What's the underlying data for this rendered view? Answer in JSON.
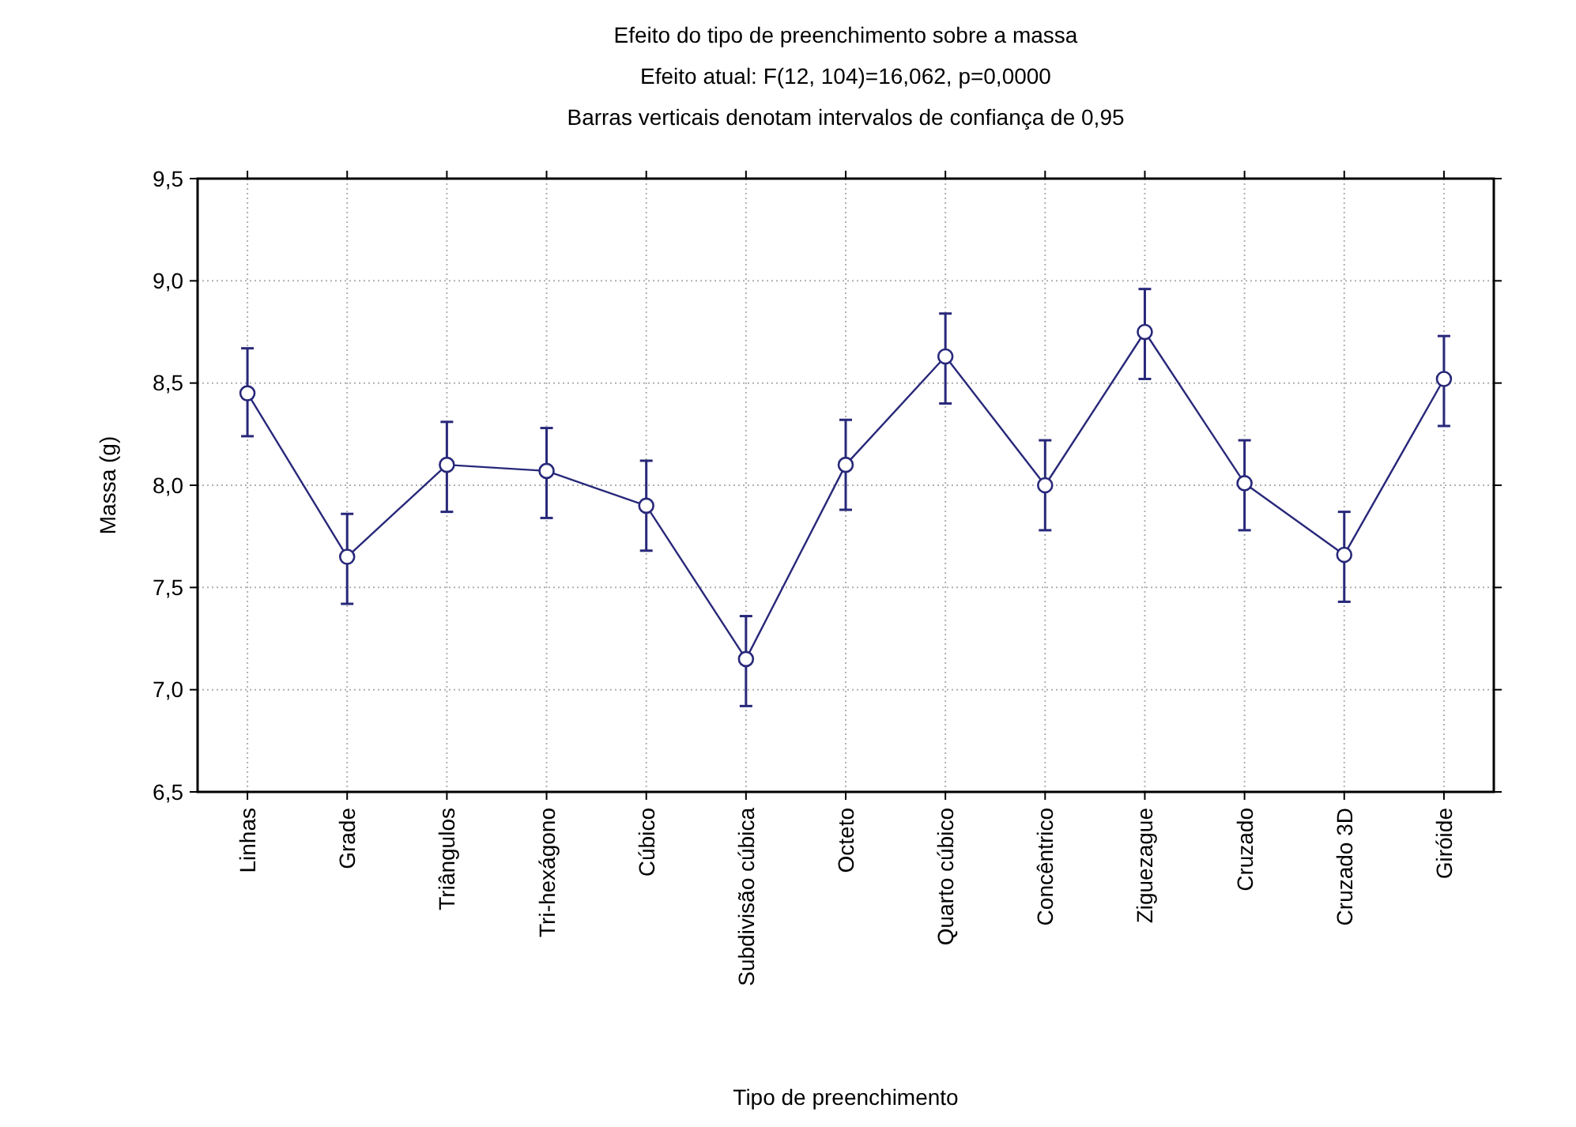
{
  "chart_data": {
    "type": "line",
    "title": "Efeito do tipo de preenchimento sobre a massa",
    "subtitle": "Efeito atual: F(12, 104)=16,062, p=0,0000",
    "annotations": [
      "Barras verticais denotam intervalos de confiança de 0,95"
    ],
    "xlabel": "Tipo de preenchimento",
    "ylabel": "Massa (g)",
    "categories": [
      "Linhas",
      "Grade",
      "Triângulos",
      "Tri-hexágono",
      "Cúbico",
      "Subdivisão cúbica",
      "Octeto",
      "Quarto cúbico",
      "Concêntrico",
      "Ziguezague",
      "Cruzado",
      "Cruzado 3D",
      "Giróide"
    ],
    "series": [
      {
        "color": "#28287a",
        "values": [
          8.45,
          7.65,
          8.1,
          8.07,
          7.9,
          7.15,
          8.1,
          8.63,
          8.0,
          8.75,
          8.01,
          7.66,
          8.52
        ],
        "errors": [
          [
            8.24,
            8.67
          ],
          [
            7.42,
            7.86
          ],
          [
            7.87,
            8.31
          ],
          [
            7.84,
            8.28
          ],
          [
            7.68,
            8.12
          ],
          [
            6.92,
            7.36
          ],
          [
            7.88,
            8.32
          ],
          [
            8.4,
            8.84
          ],
          [
            7.78,
            8.22
          ],
          [
            8.52,
            8.96
          ],
          [
            7.78,
            8.22
          ],
          [
            7.43,
            7.87
          ],
          [
            8.29,
            8.73
          ]
        ]
      }
    ],
    "ylim": [
      6.5,
      9.5
    ],
    "yticks": [
      {
        "value": 6.5,
        "label": "6,5"
      },
      {
        "value": 7,
        "label": "7,0"
      },
      {
        "value": 7.5,
        "label": "7,5"
      },
      {
        "value": 8,
        "label": "8,0"
      },
      {
        "value": 8.5,
        "label": "8,5"
      },
      {
        "value": 9,
        "label": "9,0"
      },
      {
        "value": 9.5,
        "label": "9,5"
      }
    ],
    "grid": true,
    "marker": "circle",
    "line_style": "solid"
  }
}
